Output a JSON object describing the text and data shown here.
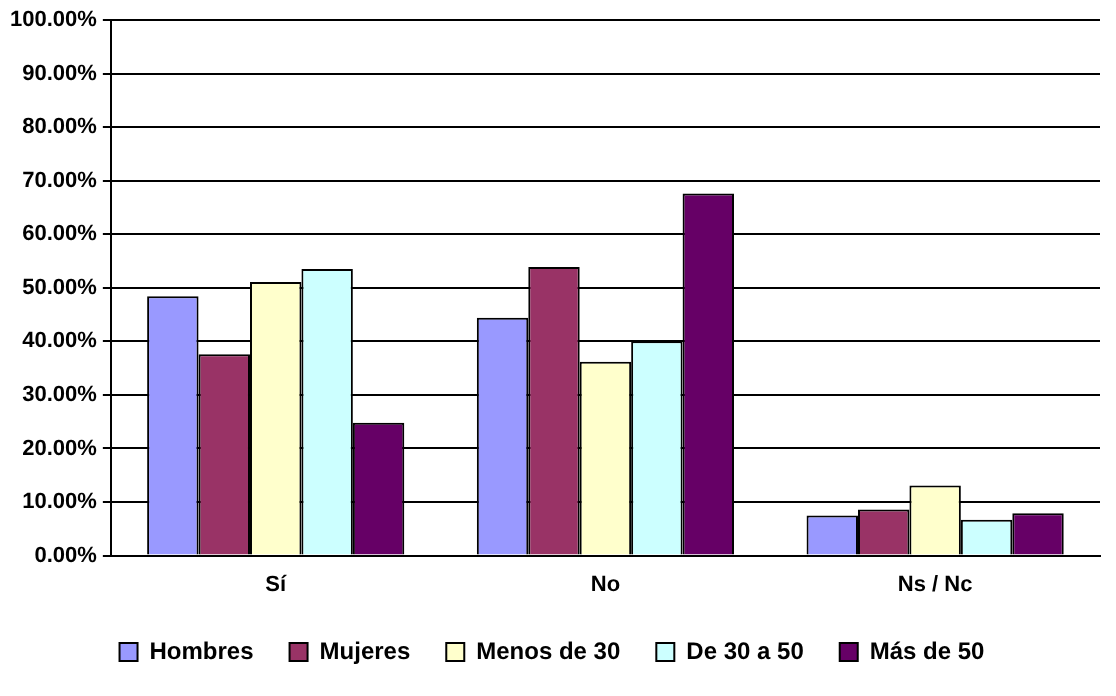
{
  "chart_data": {
    "type": "bar",
    "categories": [
      "Sí",
      "No",
      "Ns / Nc"
    ],
    "series": [
      {
        "name": "Hombres",
        "color": "#9999ff",
        "values": [
          48.4,
          44.4,
          7.5
        ]
      },
      {
        "name": "Mujeres",
        "color": "#993366",
        "values": [
          37.6,
          53.9,
          8.6
        ]
      },
      {
        "name": "Menos de 30",
        "color": "#ffffcc",
        "values": [
          51.1,
          36.2,
          13.1
        ]
      },
      {
        "name": "De 30 a 50",
        "color": "#ccffff",
        "values": [
          53.5,
          40.0,
          6.7
        ]
      },
      {
        "name": "Más de 50",
        "color": "#660066",
        "values": [
          24.8,
          67.6,
          7.9
        ]
      }
    ],
    "ylim": [
      0,
      100
    ],
    "yticks": [
      {
        "value": 0,
        "label": "0.00%"
      },
      {
        "value": 10,
        "label": "10.00%"
      },
      {
        "value": 20,
        "label": "20.00%"
      },
      {
        "value": 30,
        "label": "30.00%"
      },
      {
        "value": 40,
        "label": "40.00%"
      },
      {
        "value": 50,
        "label": "50.00%"
      },
      {
        "value": 60,
        "label": "60.00%"
      },
      {
        "value": 70,
        "label": "70.00%"
      },
      {
        "value": 80,
        "label": "80.00%"
      },
      {
        "value": 90,
        "label": "90.00%"
      },
      {
        "value": 100,
        "label": "100.00%"
      }
    ],
    "grid": "y",
    "legend": "bottom"
  }
}
